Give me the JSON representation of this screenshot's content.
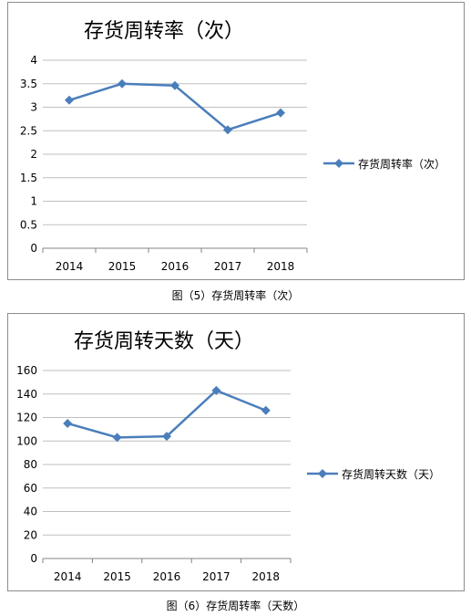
{
  "chart_data": [
    {
      "type": "line",
      "title": "存货周转率（次）",
      "categories": [
        "2014",
        "2015",
        "2016",
        "2017",
        "2018"
      ],
      "series": [
        {
          "name": "存货周转率（次）",
          "values": [
            3.15,
            3.5,
            3.46,
            2.52,
            2.88
          ],
          "color": "#4a7ebb"
        }
      ],
      "yticks": [
        "0",
        "0.5",
        "1",
        "1.5",
        "2",
        "2.5",
        "3",
        "3.5",
        "4"
      ],
      "ylim": [
        0,
        4
      ],
      "grid": true,
      "legend": "right",
      "caption": "图（5）存货周转率（次）"
    },
    {
      "type": "line",
      "title": "存货周转天数（天）",
      "categories": [
        "2014",
        "2015",
        "2016",
        "2017",
        "2018"
      ],
      "series": [
        {
          "name": "存货周转天数（天）",
          "values": [
            115,
            103,
            104,
            143,
            126
          ],
          "color": "#4a7ebb"
        }
      ],
      "yticks": [
        "0",
        "20",
        "40",
        "60",
        "80",
        "100",
        "120",
        "140",
        "160"
      ],
      "ylim": [
        0,
        160
      ],
      "grid": true,
      "legend": "right",
      "caption": "图（6）存货周转率（天数）"
    }
  ]
}
